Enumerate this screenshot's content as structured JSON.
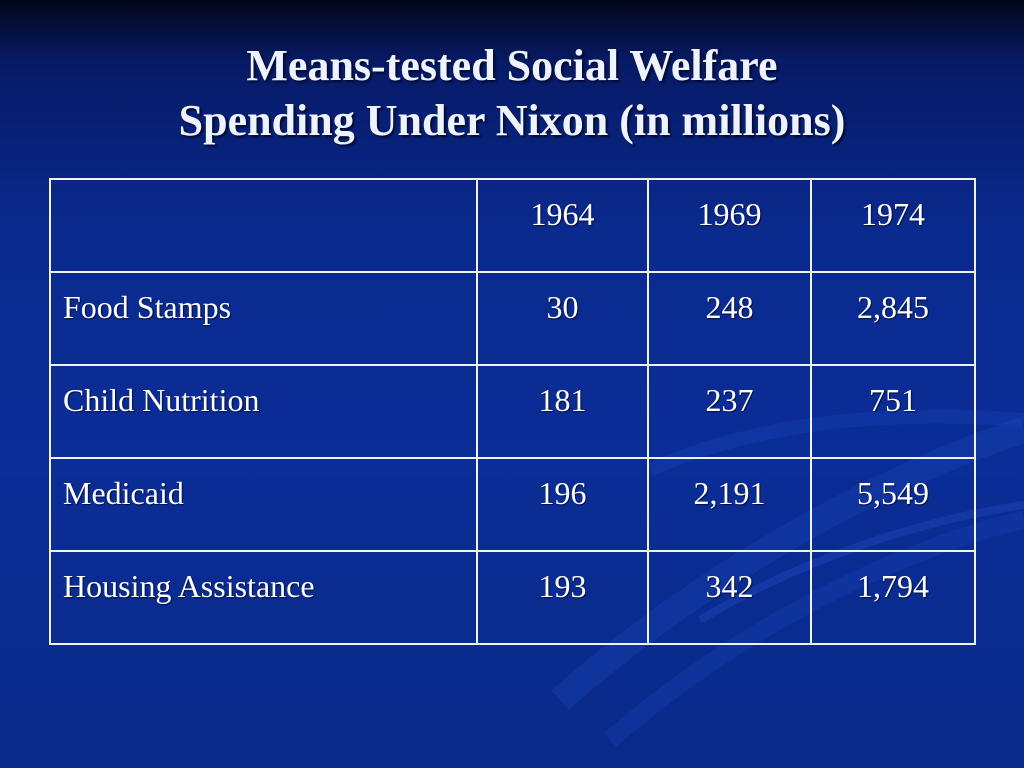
{
  "slide": {
    "title_line1": "Means-tested Social Welfare",
    "title_line2": "Spending Under Nixon (in millions)"
  },
  "table": {
    "header": [
      "",
      "1964",
      "1969",
      "1974"
    ],
    "rows": [
      {
        "label": "Food Stamps",
        "values": [
          "30",
          "248",
          "2,845"
        ]
      },
      {
        "label": "Child Nutrition",
        "values": [
          "181",
          "237",
          "751"
        ]
      },
      {
        "label": "Medicaid",
        "values": [
          "196",
          "2,191",
          "5,549"
        ]
      },
      {
        "label": "Housing Assistance",
        "values": [
          "193",
          "342",
          "1,794"
        ]
      }
    ]
  },
  "colors": {
    "background": "#0a2d96",
    "text": "#ffffff",
    "grid": "#f2f2f2"
  }
}
